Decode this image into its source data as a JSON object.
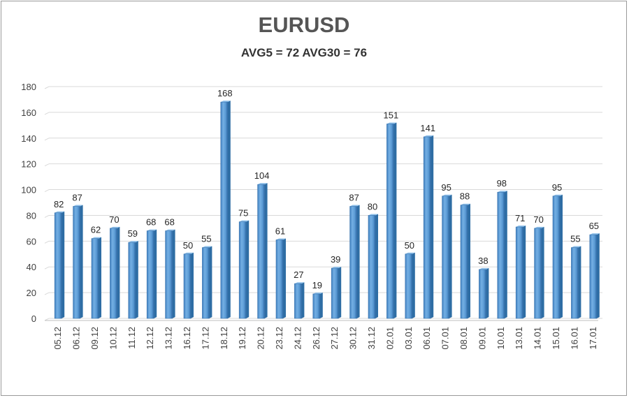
{
  "chart_data": {
    "type": "bar",
    "title": "EURUSD",
    "subtitle": "AVG5 = 72 AVG30 = 76",
    "categories": [
      "05.12",
      "06.12",
      "09.12",
      "10.12",
      "11.12",
      "12.12",
      "13.12",
      "16.12",
      "17.12",
      "18.12",
      "19.12",
      "20.12",
      "23.12",
      "24.12",
      "26.12",
      "27.12",
      "30.12",
      "31.12",
      "02.01",
      "03.01",
      "06.01",
      "07.01",
      "08.01",
      "09.01",
      "10.01",
      "13.01",
      "14.01",
      "15.01",
      "16.01",
      "17.01"
    ],
    "values": [
      82,
      87,
      62,
      70,
      59,
      68,
      68,
      50,
      55,
      168,
      75,
      104,
      61,
      27,
      19,
      39,
      87,
      80,
      151,
      50,
      141,
      95,
      88,
      38,
      98,
      71,
      70,
      95,
      55,
      65
    ],
    "ylim": [
      0,
      180
    ],
    "yticks": [
      0,
      20,
      40,
      60,
      80,
      100,
      120,
      140,
      160,
      180
    ],
    "grid": true,
    "legend": "none",
    "bar_color": "#5b9bd5",
    "bar_edge_color": "#2e6da4"
  }
}
